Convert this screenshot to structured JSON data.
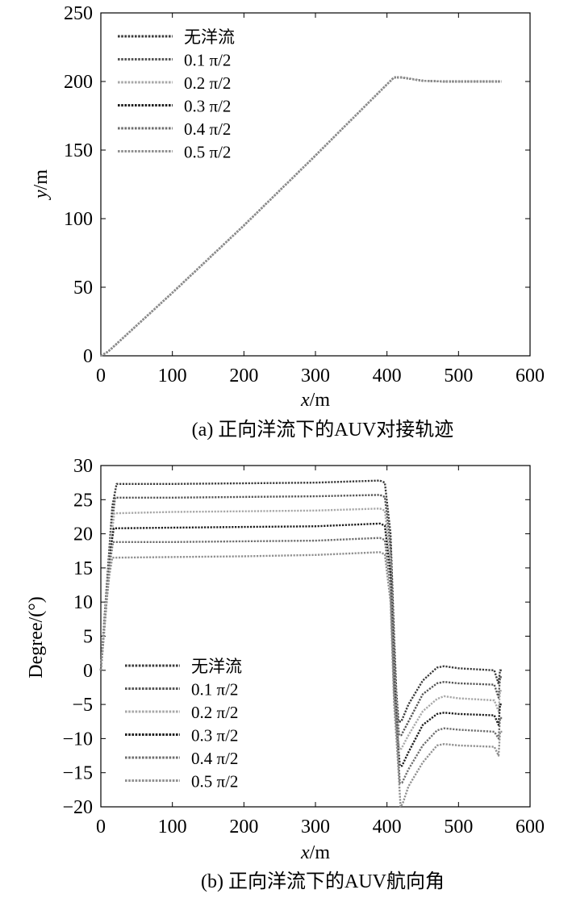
{
  "chart_data": [
    {
      "type": "line",
      "caption": "(a) 正向洋流下的AUV对接轨迹",
      "xlabel_var": "x",
      "xlabel_unit": "/m",
      "ylabel_var": "y",
      "ylabel_unit": "/m",
      "xlim": [
        0,
        600
      ],
      "ylim": [
        0,
        250
      ],
      "xticks": [
        "0",
        "100",
        "200",
        "300",
        "400",
        "500",
        "600"
      ],
      "yticks": [
        "0",
        "50",
        "100",
        "150",
        "200",
        "250"
      ],
      "grid": false,
      "legend_position": "top-left",
      "series": [
        {
          "name": "无洋流",
          "color": "#3a3a3a",
          "x": [
            0,
            10,
            100,
            200,
            300,
            400,
            410,
            420,
            450,
            480,
            520,
            560
          ],
          "y": [
            0,
            3,
            46,
            95,
            146,
            198,
            203,
            203,
            200.5,
            200,
            200,
            200
          ]
        },
        {
          "name": "0.1 π/2",
          "color": "#555555",
          "x": [
            0,
            10,
            100,
            200,
            300,
            400,
            410,
            420,
            450,
            480,
            520,
            560
          ],
          "y": [
            0,
            3,
            46,
            95,
            146,
            198,
            203,
            203,
            200.5,
            200,
            200,
            200
          ]
        },
        {
          "name": "0.2 π/2",
          "color": "#a8a8a8",
          "x": [
            0,
            10,
            100,
            200,
            300,
            400,
            410,
            420,
            450,
            480,
            520,
            560
          ],
          "y": [
            0,
            3,
            46,
            95,
            146,
            198,
            203,
            203,
            200.5,
            200,
            200,
            200
          ]
        },
        {
          "name": "0.3 π/2",
          "color": "#1e1e1e",
          "x": [
            0,
            10,
            100,
            200,
            300,
            400,
            410,
            420,
            450,
            480,
            520,
            560
          ],
          "y": [
            0,
            3,
            46,
            95,
            146,
            198,
            203,
            203,
            200.5,
            200,
            200,
            200
          ]
        },
        {
          "name": "0.4 π/2",
          "color": "#6e6e6e",
          "x": [
            0,
            10,
            100,
            200,
            300,
            400,
            410,
            420,
            450,
            480,
            520,
            560
          ],
          "y": [
            0,
            3,
            46,
            95,
            146,
            198,
            203,
            203,
            200.5,
            200,
            200,
            200
          ]
        },
        {
          "name": "0.5 π/2",
          "color": "#909090",
          "x": [
            0,
            10,
            100,
            200,
            300,
            400,
            410,
            420,
            450,
            480,
            520,
            560
          ],
          "y": [
            0,
            3,
            46,
            95,
            146,
            198,
            203,
            203,
            200.5,
            200,
            200,
            200
          ]
        }
      ]
    },
    {
      "type": "line",
      "caption": "(b) 正向洋流下的AUV航向角",
      "xlabel_var": "x",
      "xlabel_unit": "/m",
      "ylabel": "Degree/(°)",
      "xlim": [
        0,
        600
      ],
      "ylim": [
        -20,
        30
      ],
      "xticks": [
        "0",
        "100",
        "200",
        "300",
        "400",
        "500",
        "600"
      ],
      "yticks": [
        "−20",
        "−15",
        "−10",
        "−5",
        "0",
        "5",
        "10",
        "15",
        "20",
        "25",
        "30"
      ],
      "grid": false,
      "legend_position": "bottom-left",
      "series": [
        {
          "name": "无洋流",
          "color": "#3a3a3a",
          "x": [
            0,
            8,
            16,
            22,
            100,
            200,
            300,
            390,
            397,
            405,
            410,
            413,
            416,
            420,
            430,
            450,
            470,
            480,
            500,
            550,
            556,
            558,
            561
          ],
          "y": [
            0,
            12,
            24,
            27.3,
            27.3,
            27.4,
            27.5,
            27.8,
            27.5,
            20,
            5,
            -3,
            -7.5,
            -7.5,
            -5,
            -1.5,
            0.4,
            0.6,
            0.3,
            0,
            -2,
            0,
            0
          ]
        },
        {
          "name": "0.1 π/2",
          "color": "#555555",
          "x": [
            0,
            8,
            16,
            20,
            100,
            200,
            300,
            390,
            397,
            405,
            410,
            413,
            417,
            420,
            430,
            450,
            470,
            480,
            500,
            550,
            556,
            558,
            561
          ],
          "y": [
            0,
            12,
            22,
            25.3,
            25.3,
            25.4,
            25.5,
            25.7,
            25.4,
            18,
            3,
            -5,
            -9.5,
            -9.5,
            -7.5,
            -3.5,
            -1.9,
            -1.7,
            -1.9,
            -2.1,
            -4,
            -1,
            -1
          ]
        },
        {
          "name": "0.2 π/2",
          "color": "#a8a8a8",
          "x": [
            0,
            8,
            15,
            19,
            100,
            200,
            300,
            390,
            397,
            405,
            410,
            414,
            417,
            420,
            430,
            450,
            470,
            480,
            500,
            550,
            556,
            558,
            561
          ],
          "y": [
            0,
            11,
            20,
            23,
            23.2,
            23.3,
            23.4,
            23.7,
            23.4,
            16,
            1,
            -7,
            -11.5,
            -11.5,
            -9.5,
            -6,
            -4.2,
            -3.8,
            -4.1,
            -4.4,
            -6,
            -3,
            -3
          ]
        },
        {
          "name": "0.3 π/2",
          "color": "#1e1e1e",
          "x": [
            0,
            8,
            14,
            18,
            100,
            200,
            300,
            390,
            397,
            405,
            410,
            414,
            418,
            421,
            430,
            450,
            470,
            480,
            500,
            550,
            556,
            558,
            561
          ],
          "y": [
            0,
            10,
            18,
            20.8,
            20.9,
            21,
            21.1,
            21.5,
            21.2,
            14,
            -1,
            -9,
            -14,
            -14,
            -12,
            -8,
            -6.4,
            -6.2,
            -6.4,
            -6.6,
            -8,
            -5,
            -5
          ]
        },
        {
          "name": "0.4 π/2",
          "color": "#6e6e6e",
          "x": [
            0,
            8,
            13,
            17,
            100,
            200,
            300,
            390,
            397,
            405,
            410,
            415,
            418,
            421,
            430,
            450,
            470,
            480,
            500,
            550,
            556,
            558,
            561
          ],
          "y": [
            0,
            10,
            16,
            18.8,
            18.8,
            18.9,
            19,
            19.4,
            19.1,
            12,
            -3,
            -11,
            -16.5,
            -16.5,
            -14.5,
            -11,
            -8.8,
            -8.5,
            -8.7,
            -9,
            -10,
            -7,
            -7
          ]
        },
        {
          "name": "0.5 π/2",
          "color": "#909090",
          "x": [
            0,
            8,
            12,
            16,
            100,
            200,
            300,
            390,
            397,
            405,
            410,
            415,
            419,
            422,
            430,
            450,
            470,
            480,
            500,
            550,
            556,
            558,
            561
          ],
          "y": [
            0,
            10,
            14,
            16.5,
            16.6,
            16.7,
            16.9,
            17.3,
            17,
            10,
            -5,
            -13,
            -20,
            -19.5,
            -17,
            -13.5,
            -11,
            -10.8,
            -11,
            -11.2,
            -12.5,
            -9,
            -9
          ]
        }
      ]
    }
  ]
}
